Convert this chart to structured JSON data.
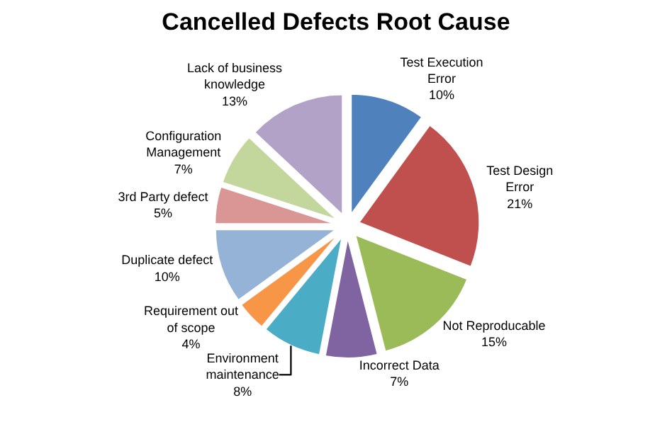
{
  "chart_data": {
    "type": "pie",
    "title": "Cancelled Defects Root Cause",
    "categories": [
      "Test Execution Error",
      "Test Design Error",
      "Not Reproducable",
      "Incorrect Data",
      "Environment maintenance",
      "Requirement out of scope",
      "Duplicate defect",
      "3rd Party defect",
      "Configuration Management",
      "Lack of business knowledge"
    ],
    "values": [
      10,
      21,
      15,
      7,
      8,
      4,
      10,
      5,
      7,
      13
    ],
    "value_labels": [
      "10%",
      "21%",
      "15%",
      "7%",
      "8%",
      "4%",
      "10%",
      "5%",
      "7%",
      "13%"
    ],
    "colors": [
      "#4f81bd",
      "#c0504d",
      "#9bbb59",
      "#8064a2",
      "#4bacc6",
      "#f79646",
      "#95b3d7",
      "#d99694",
      "#c3d69b",
      "#b3a2c7"
    ],
    "legend": false
  }
}
